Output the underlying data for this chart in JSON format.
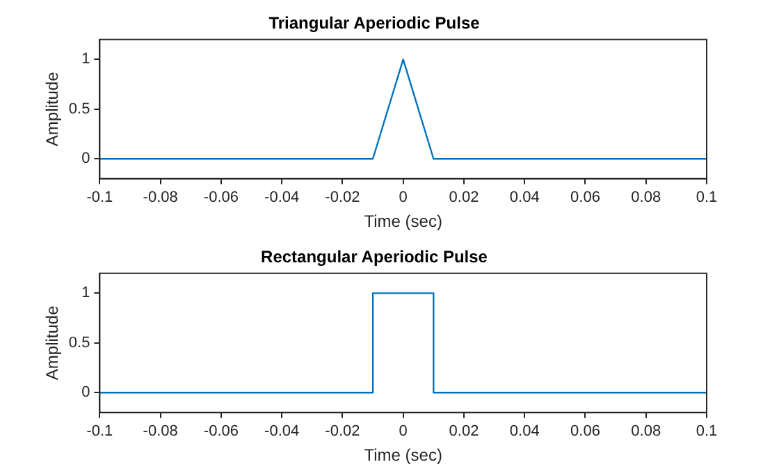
{
  "chart_data": [
    {
      "type": "line",
      "title": "Triangular Aperiodic Pulse",
      "xlabel": "Time (sec)",
      "ylabel": "Amplitude",
      "x": [
        -0.1,
        -0.01,
        0,
        0.01,
        0.1
      ],
      "series": [
        {
          "color": "#0072bd",
          "values": [
            0,
            0,
            1,
            0,
            0
          ]
        }
      ],
      "xlim": [
        -0.1,
        0.1
      ],
      "xticks": [
        -0.1,
        -0.08,
        -0.06,
        -0.04,
        -0.02,
        0,
        0.02,
        0.04,
        0.06,
        0.08,
        0.1
      ],
      "ylim": [
        -0.2,
        1.2
      ],
      "yticks": [
        0,
        0.5,
        1
      ],
      "grid": false,
      "legend": false,
      "marker": "none",
      "line_style": "solid"
    },
    {
      "type": "line",
      "title": "Rectangular Aperiodic Pulse",
      "xlabel": "Time (sec)",
      "ylabel": "Amplitude",
      "x": [
        -0.1,
        -0.01,
        -0.01,
        0.01,
        0.01,
        0.1
      ],
      "series": [
        {
          "color": "#0072bd",
          "values": [
            0,
            0,
            1,
            1,
            0,
            0
          ]
        }
      ],
      "xlim": [
        -0.1,
        0.1
      ],
      "xticks": [
        -0.1,
        -0.08,
        -0.06,
        -0.04,
        -0.02,
        0,
        0.02,
        0.04,
        0.06,
        0.08,
        0.1
      ],
      "ylim": [
        -0.2,
        1.2
      ],
      "yticks": [
        0,
        0.5,
        1
      ],
      "grid": false,
      "legend": false,
      "marker": "none",
      "line_style": "solid"
    }
  ]
}
